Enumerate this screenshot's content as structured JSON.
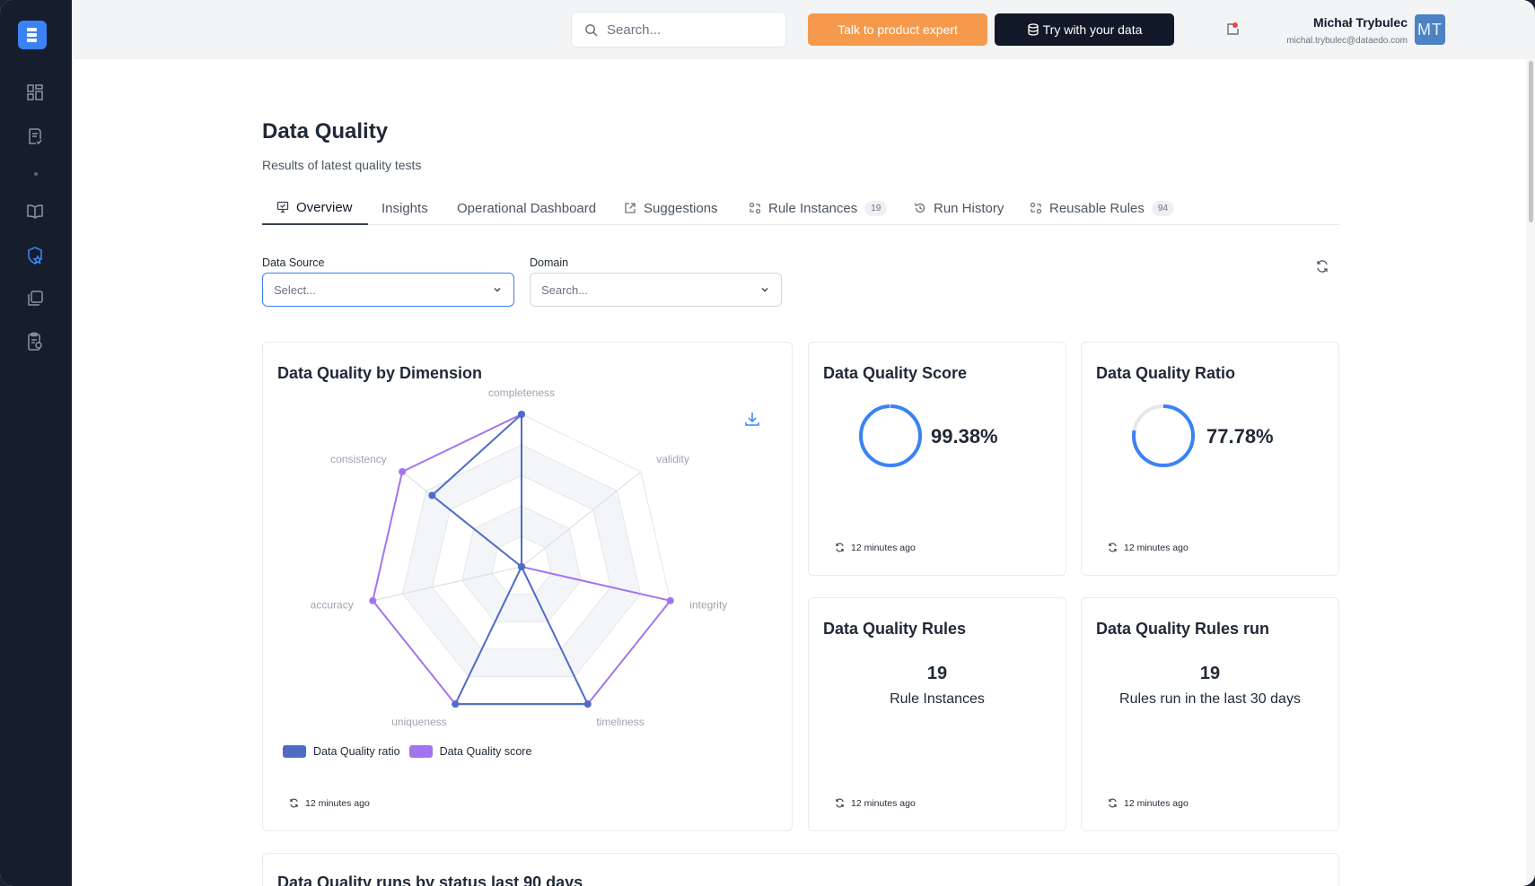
{
  "sidebar": {
    "items": [
      {
        "name": "dashboard-icon"
      },
      {
        "name": "checklist-icon"
      },
      {
        "name": "book-icon"
      },
      {
        "name": "shield-star-icon",
        "active": true
      },
      {
        "name": "pages-icon"
      },
      {
        "name": "clipboard-gear-icon"
      }
    ]
  },
  "topbar": {
    "search_placeholder": "Search...",
    "expert_button": "Talk to product expert",
    "try_button": "Try with your data",
    "user_name": "Michał Trybulec",
    "user_email": "michal.trybulec@dataedo.com",
    "avatar_initials": "MT"
  },
  "page": {
    "title": "Data Quality",
    "subtitle": "Results of latest quality tests"
  },
  "tabs": [
    {
      "label": "Overview",
      "icon": "monitor-icon",
      "active": true
    },
    {
      "label": "Insights"
    },
    {
      "label": "Operational Dashboard"
    },
    {
      "label": "Suggestions",
      "icon": "external-link-icon"
    },
    {
      "label": "Rule Instances",
      "icon": "rules-icon",
      "badge": "19"
    },
    {
      "label": "Run History",
      "icon": "history-icon"
    },
    {
      "label": "Reusable Rules",
      "icon": "rules-icon",
      "badge": "94"
    }
  ],
  "filters": {
    "data_source_label": "Data Source",
    "data_source_placeholder": "Select...",
    "domain_label": "Domain",
    "domain_placeholder": "Search..."
  },
  "dimension_card": {
    "title": "Data Quality by Dimension",
    "updated": "12 minutes ago"
  },
  "chart_data": {
    "type": "radar",
    "axes": [
      "completeness",
      "validity",
      "integrity",
      "timeliness",
      "uniqueness",
      "accuracy",
      "consistency"
    ],
    "range": [
      0,
      100
    ],
    "series": [
      {
        "name": "Data Quality ratio",
        "color": "#4f6bc6",
        "values": [
          100,
          0,
          0,
          100,
          100,
          0,
          75
        ]
      },
      {
        "name": "Data Quality score",
        "color": "#a374ef",
        "values": [
          100,
          0,
          100,
          100,
          100,
          100,
          100
        ]
      }
    ],
    "legend": "bottom-left"
  },
  "score_card": {
    "title": "Data Quality Score",
    "value": "99.38%",
    "fraction": 0.9938,
    "updated": "12 minutes ago"
  },
  "ratio_card": {
    "title": "Data Quality Ratio",
    "value": "77.78%",
    "fraction": 0.7778,
    "updated": "12 minutes ago"
  },
  "rules_card": {
    "title": "Data Quality Rules",
    "value": "19",
    "label": "Rule Instances",
    "updated": "12 minutes ago"
  },
  "rules_run_card": {
    "title": "Data Quality Rules run",
    "value": "19",
    "label": "Rules run in the last 30 days",
    "updated": "12 minutes ago"
  },
  "runs_card": {
    "title": "Data Quality runs by status last 90 days"
  },
  "colors": {
    "accent": "#3b82f6",
    "sidebar": "#161d2c",
    "orange": "#f59a4c"
  }
}
